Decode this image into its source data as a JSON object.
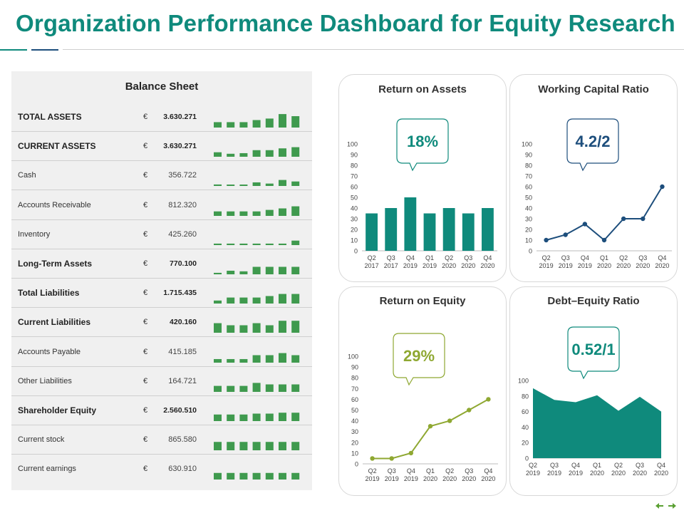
{
  "page": {
    "title": "Organization Performance Dashboard for Equity Research",
    "accent": "#0f8a7c",
    "nav_prev_icon": "arrow-left-icon",
    "nav_next_icon": "arrow-right-icon"
  },
  "balance_sheet": {
    "title": "Balance Sheet",
    "currency": "€",
    "bar_color": "#3f9a4e",
    "rows": [
      {
        "label": "TOTAL ASSETS",
        "value": "3.630.271",
        "bold": true,
        "spark": [
          18,
          18,
          18,
          25,
          30,
          45,
          38
        ]
      },
      {
        "label": "CURRENT  ASSETS",
        "value": "3.630.271",
        "bold": true,
        "spark": [
          15,
          10,
          12,
          22,
          22,
          28,
          32
        ]
      },
      {
        "label": "Cash",
        "value": "356.722",
        "bold": false,
        "spark": [
          5,
          2,
          2,
          12,
          8,
          20,
          15
        ]
      },
      {
        "label": "Accounts  Receivable",
        "value": "812.320",
        "bold": false,
        "spark": [
          15,
          15,
          15,
          15,
          20,
          25,
          32
        ]
      },
      {
        "label": "Inventory",
        "value": "425.260",
        "bold": false,
        "spark": [
          5,
          5,
          5,
          5,
          5,
          5,
          15
        ]
      },
      {
        "label": "Long-Term Assets",
        "value": "770.100",
        "bold": true,
        "spark": [
          5,
          12,
          10,
          25,
          25,
          25,
          25
        ]
      },
      {
        "label": "Total Liabilities",
        "value": "1.715.435",
        "bold": true,
        "spark": [
          10,
          20,
          20,
          20,
          25,
          32,
          32
        ]
      },
      {
        "label": "Current Liabilities",
        "value": "420.160",
        "bold": true,
        "spark": [
          32,
          25,
          25,
          32,
          25,
          40,
          40
        ]
      },
      {
        "label": "Accounts Payable",
        "value": "415.185",
        "bold": false,
        "spark": [
          12,
          12,
          12,
          25,
          25,
          32,
          25
        ]
      },
      {
        "label": "Other Liabilities",
        "value": "164.721",
        "bold": false,
        "spark": [
          20,
          20,
          20,
          30,
          25,
          25,
          25
        ]
      },
      {
        "label": "Shareholder Equity",
        "value": "2.560.510",
        "bold": true,
        "spark": [
          22,
          22,
          22,
          25,
          25,
          28,
          28
        ]
      },
      {
        "label": "Current stock",
        "value": "865.580",
        "bold": false,
        "spark": [
          28,
          28,
          28,
          28,
          28,
          28,
          28
        ]
      },
      {
        "label": "Current earnings",
        "value": "630.910",
        "bold": false,
        "spark": [
          22,
          22,
          22,
          22,
          22,
          22,
          22
        ]
      }
    ]
  },
  "cards": {
    "roa": {
      "title": "Return on Assets",
      "kpi": "18%",
      "color": "#0f8a7c"
    },
    "wcr": {
      "title": "Working Capital Ratio",
      "kpi": "4.2/2",
      "color": "#1d4e7c"
    },
    "roe": {
      "title": "Return on Equity",
      "kpi": "29%",
      "color": "#8fa832"
    },
    "der": {
      "title": "Debt–Equity Ratio",
      "kpi": "0.52/1",
      "color": "#0f8a7c"
    }
  },
  "chart_data": [
    {
      "id": "roa",
      "type": "bar",
      "title": "Return on Assets",
      "categories": [
        "Q2 2017",
        "Q3 2017",
        "Q4 2019",
        "Q1 2019",
        "Q2 2020",
        "Q3 2020",
        "Q4 2020"
      ],
      "values": [
        35,
        40,
        50,
        35,
        40,
        35,
        40
      ],
      "ylim": [
        0,
        100
      ],
      "yticks": [
        0,
        10,
        20,
        30,
        40,
        50,
        60,
        70,
        80,
        90,
        100
      ],
      "color": "#0f8a7c"
    },
    {
      "id": "wcr",
      "type": "line",
      "title": "Working Capital Ratio",
      "categories": [
        "Q2 2019",
        "Q3 2019",
        "Q4 2019",
        "Q1 2020",
        "Q2 2020",
        "Q3 2020",
        "Q4 2020"
      ],
      "values": [
        10,
        15,
        25,
        10,
        30,
        30,
        60
      ],
      "ylim": [
        0,
        100
      ],
      "yticks": [
        0,
        10,
        20,
        30,
        40,
        50,
        60,
        70,
        80,
        90,
        100
      ],
      "color": "#1d4e7c"
    },
    {
      "id": "roe",
      "type": "line",
      "title": "Return on Equity",
      "categories": [
        "Q2 2019",
        "Q3 2019",
        "Q4 2019",
        "Q1 2020",
        "Q2 2020",
        "Q3 2020",
        "Q4 2020"
      ],
      "values": [
        5,
        5,
        10,
        35,
        40,
        50,
        60
      ],
      "ylim": [
        0,
        100
      ],
      "yticks": [
        0,
        10,
        20,
        30,
        40,
        50,
        60,
        70,
        80,
        90,
        100
      ],
      "color": "#8fa832"
    },
    {
      "id": "der",
      "type": "area",
      "title": "Debt–Equity Ratio",
      "categories": [
        "Q2 2019",
        "Q3 2019",
        "Q4 2019",
        "Q1 2020",
        "Q2 2020",
        "Q3 2020",
        "Q4 2020"
      ],
      "values": [
        90,
        75,
        72,
        81,
        61,
        79,
        60
      ],
      "ylim": [
        0,
        100
      ],
      "yticks": [
        0,
        20,
        40,
        60,
        80,
        100
      ],
      "color": "#0f8a7c"
    }
  ]
}
